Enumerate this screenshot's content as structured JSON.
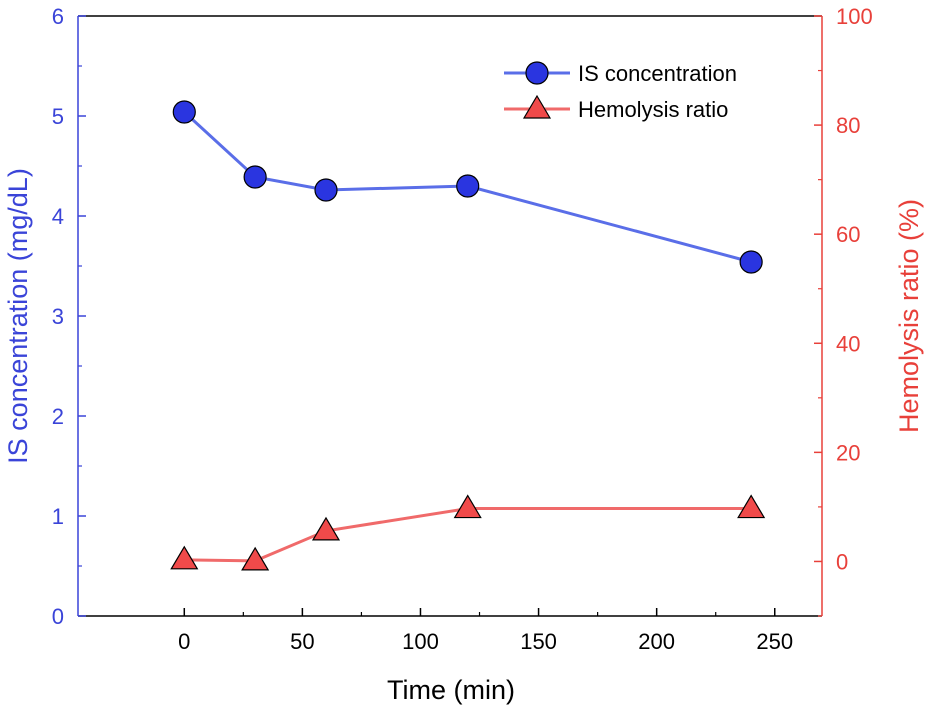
{
  "chart_data": {
    "type": "line",
    "xlabel": "Time (min)",
    "ylabel": "IS concentration (mg/dL)",
    "y2label": "Hemolysis ratio (%)",
    "xlim": [
      -45,
      270
    ],
    "ylim": [
      0,
      6
    ],
    "y2lim": [
      -10,
      100
    ],
    "x_ticks": [
      0,
      50,
      100,
      150,
      200,
      250
    ],
    "y_ticks": [
      0,
      1,
      2,
      3,
      4,
      5,
      6
    ],
    "y2_ticks": [
      0,
      20,
      40,
      60,
      80,
      100
    ],
    "grid": false,
    "legend_position": "top-right",
    "series": [
      {
        "name": "IS concentration",
        "axis": "left",
        "marker": "circle",
        "color": "#5a6ee8",
        "x": [
          0,
          30,
          60,
          120,
          240
        ],
        "values": [
          5.04,
          4.39,
          4.26,
          4.3,
          3.54
        ]
      },
      {
        "name": "Hemolysis ratio",
        "axis": "right",
        "marker": "triangle",
        "color": "#f06a6a",
        "x": [
          0,
          30,
          60,
          120,
          240
        ],
        "values": [
          0.3,
          0.1,
          5.6,
          9.7,
          9.7
        ]
      }
    ],
    "colors": {
      "left_axis": "#3a44d8",
      "right_axis": "#e8403a",
      "frame": "#000000"
    }
  }
}
